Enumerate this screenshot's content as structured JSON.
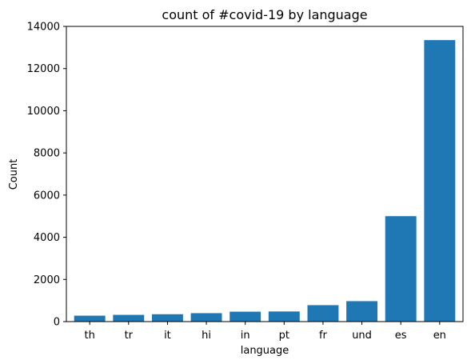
{
  "chart_data": {
    "type": "bar",
    "title": "count of #covid-19 by language",
    "xlabel": "language",
    "ylabel": "Count",
    "categories": [
      "th",
      "tr",
      "it",
      "hi",
      "in",
      "pt",
      "fr",
      "und",
      "es",
      "en"
    ],
    "values": [
      280,
      320,
      350,
      400,
      470,
      480,
      780,
      970,
      5000,
      13350
    ],
    "ylim": [
      0,
      14000
    ],
    "yticks": [
      0,
      2000,
      4000,
      6000,
      8000,
      10000,
      12000,
      14000
    ],
    "grid": false,
    "legend": "none",
    "bar_color": "#1f77b4"
  }
}
